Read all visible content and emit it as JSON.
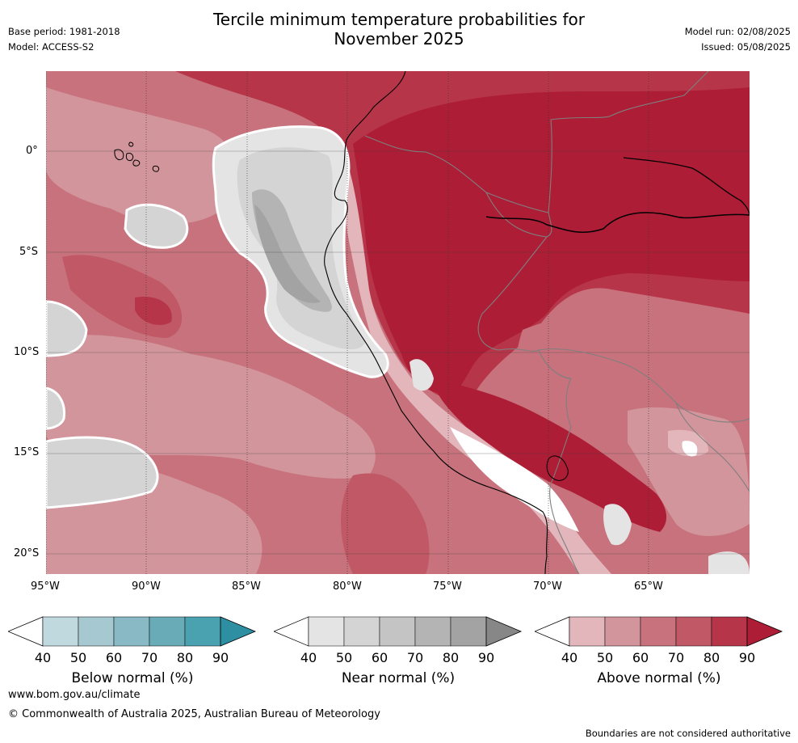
{
  "title": {
    "line1": "Tercile minimum temperature probabilities for",
    "line2": "November 2025"
  },
  "meta_left": {
    "base_period": "Base period: 1981-2018",
    "model": "Model: ACCESS-S2"
  },
  "meta_right": {
    "model_run": "Model run: 02/08/2025",
    "issued": "Issued: 05/08/2025"
  },
  "map": {
    "lon_labels": [
      "95°W",
      "90°W",
      "85°W",
      "80°W",
      "75°W",
      "70°W",
      "65°W"
    ],
    "lat_labels": [
      "0°",
      "5°S",
      "10°S",
      "15°S",
      "20°S"
    ],
    "lon_range": [
      -95,
      -60
    ],
    "lat_range": [
      -21,
      4
    ],
    "gridlines": true
  },
  "colorbars": [
    {
      "label": "Below normal (%)",
      "ticks": [
        "40",
        "50",
        "60",
        "70",
        "80",
        "90"
      ],
      "colors": [
        "#ffffff",
        "#bfd9df",
        "#a6c8d0",
        "#88b9c5",
        "#6aabb8",
        "#4aa2b1",
        "#2e8fa3"
      ]
    },
    {
      "label": "Near normal (%)",
      "ticks": [
        "40",
        "50",
        "60",
        "70",
        "80",
        "90"
      ],
      "colors": [
        "#ffffff",
        "#e4e4e4",
        "#d4d4d4",
        "#c4c4c4",
        "#b4b4b4",
        "#a3a3a3",
        "#878787"
      ]
    },
    {
      "label": "Above normal (%)",
      "ticks": [
        "40",
        "50",
        "60",
        "70",
        "80",
        "90"
      ],
      "colors": [
        "#ffffff",
        "#e2b6bb",
        "#d3959c",
        "#c7727c",
        "#c05866",
        "#b73548",
        "#ad1d36"
      ]
    }
  ],
  "footer": {
    "url": "www.bom.gov.au/climate",
    "copyright": "© Commonwealth of Australia 2025, Australian Bureau of Meteorology",
    "disclaimer": "Boundaries are not considered authoritative"
  }
}
